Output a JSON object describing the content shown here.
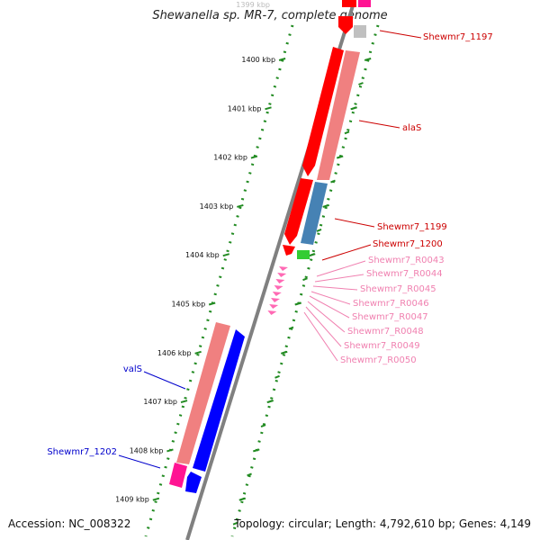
{
  "title": "Shewanella sp. MR-7, complete genome",
  "footer": {
    "accession": "Accession: NC_008322",
    "summary": "Topology: circular; Length: 4,792,610 bp; Genes: 4,149"
  },
  "scale": {
    "top_clipped_label": "1399 kbp",
    "ticks": [
      "1400 kbp",
      "1401 kbp",
      "1402 kbp",
      "1403 kbp",
      "1404 kbp",
      "1405 kbp",
      "1406 kbp",
      "1407 kbp",
      "1408 kbp",
      "1409 kbp"
    ]
  },
  "colors": {
    "cds_red": "#ff0000",
    "cds_pink": "#f08080",
    "cds_blue": "#0000ff",
    "cds_steel": "#4682b4",
    "trna_pink": "#ff69b4",
    "rrna_green": "#33cc33",
    "backbone": "#808080",
    "scale_green": "#228b22",
    "label_red": "#cc0000",
    "label_pink": "#f080b0",
    "label_blue": "#0000cc"
  },
  "gene_labels": [
    {
      "text": "Shewmr7_1197",
      "color_key": "label_red"
    },
    {
      "text": "alaS",
      "color_key": "label_red"
    },
    {
      "text": "Shewmr7_1199",
      "color_key": "label_red"
    },
    {
      "text": "Shewmr7_1200",
      "color_key": "label_red"
    },
    {
      "text": "Shewmr7_R0043",
      "color_key": "label_pink"
    },
    {
      "text": "Shewmr7_R0044",
      "color_key": "label_pink"
    },
    {
      "text": "Shewmr7_R0045",
      "color_key": "label_pink"
    },
    {
      "text": "Shewmr7_R0046",
      "color_key": "label_pink"
    },
    {
      "text": "Shewmr7_R0047",
      "color_key": "label_pink"
    },
    {
      "text": "Shewmr7_R0048",
      "color_key": "label_pink"
    },
    {
      "text": "Shewmr7_R0049",
      "color_key": "label_pink"
    },
    {
      "text": "Shewmr7_R0050",
      "color_key": "label_pink"
    },
    {
      "text": "valS",
      "color_key": "label_blue"
    },
    {
      "text": "Shewmr7_1202",
      "color_key": "label_blue"
    }
  ]
}
